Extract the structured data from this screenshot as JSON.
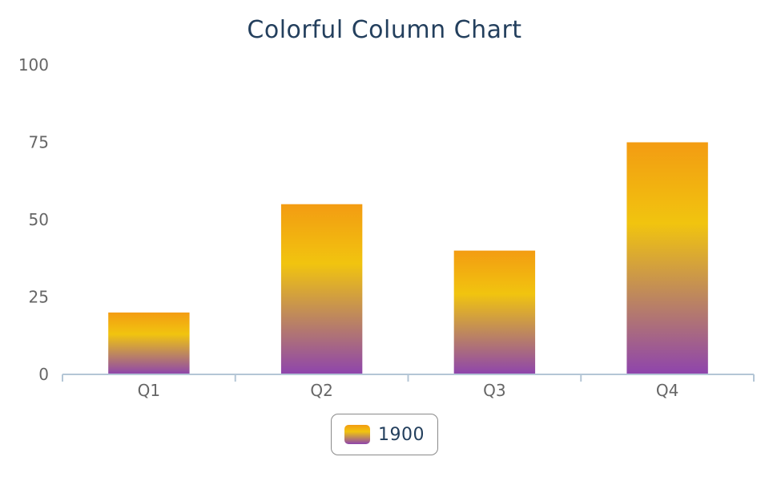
{
  "chart_data": {
    "type": "bar",
    "title": "Colorful Column Chart",
    "categories": [
      "Q1",
      "Q2",
      "Q3",
      "Q4"
    ],
    "series": [
      {
        "name": "1900",
        "values": [
          20,
          55,
          40,
          75
        ]
      }
    ],
    "ylim": [
      0,
      100
    ],
    "yticks": [
      "0",
      "25",
      "50",
      "75",
      "100"
    ],
    "xlabel": "",
    "ylabel": "",
    "grid": false,
    "legend_position": "bottom-center",
    "colors": {
      "gradient_top": "#f39c12",
      "gradient_mid": "#f1c40f",
      "gradient_bottom": "#8e44ad",
      "axis": "#b4c6d6",
      "tick_text": "#666666",
      "title_text": "#233f5d"
    }
  }
}
